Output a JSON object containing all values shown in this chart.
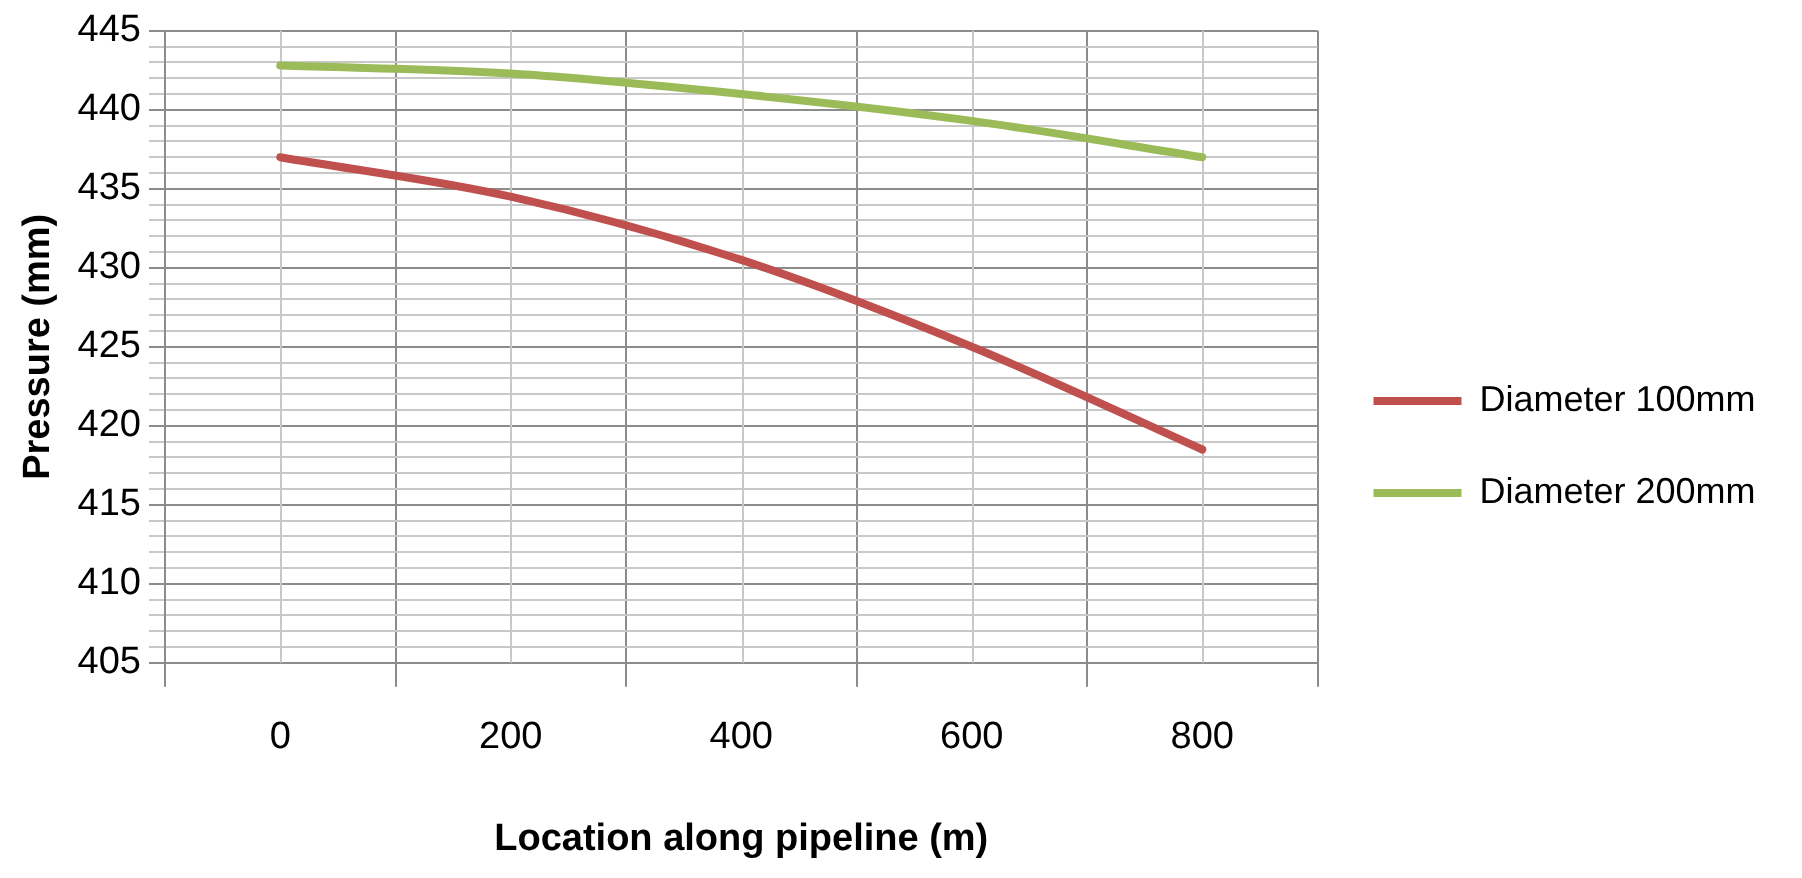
{
  "chart_data": {
    "type": "line",
    "xlabel": "Location along pipeline (m)",
    "ylabel": "Pressure (mm)",
    "categories": [
      "0",
      "200",
      "400",
      "600",
      "800"
    ],
    "series": [
      {
        "name": "Diameter 100mm",
        "color": "#c0504d",
        "values": [
          437,
          434.5,
          430.5,
          425,
          418.5
        ]
      },
      {
        "name": "Diameter 200mm",
        "color": "#9bbb59",
        "values": [
          442.8,
          442.3,
          441,
          439.3,
          437
        ]
      }
    ],
    "ylim": [
      405,
      445
    ],
    "yticks": [
      405,
      {
        "value": 406,
        "label": null
      },
      {
        "value": 407,
        "label": null
      },
      {
        "value": 408,
        "label": null
      },
      {
        "value": 409,
        "label": null
      },
      410,
      {
        "value": 411,
        "label": null
      },
      {
        "value": 412,
        "label": null
      },
      {
        "value": 413,
        "label": null
      },
      {
        "value": 414,
        "label": null
      },
      415,
      {
        "value": 416,
        "label": null
      },
      {
        "value": 417,
        "label": null
      },
      {
        "value": 418,
        "label": null
      },
      {
        "value": 419,
        "label": null
      },
      420,
      {
        "value": 421,
        "label": null
      },
      {
        "value": 422,
        "label": null
      },
      {
        "value": 423,
        "label": null
      },
      {
        "value": 424,
        "label": null
      },
      425,
      {
        "value": 426,
        "label": null
      },
      {
        "value": 427,
        "label": null
      },
      {
        "value": 428,
        "label": null
      },
      {
        "value": 429,
        "label": null
      },
      430,
      {
        "value": 431,
        "label": null
      },
      {
        "value": 432,
        "label": null
      },
      {
        "value": 433,
        "label": null
      },
      {
        "value": 434,
        "label": null
      },
      435,
      {
        "value": 436,
        "label": null
      },
      {
        "value": 437,
        "label": null
      },
      {
        "value": 438,
        "label": null
      },
      {
        "value": 439,
        "label": null
      },
      440,
      {
        "value": 441,
        "label": null
      },
      {
        "value": 442,
        "label": null
      },
      {
        "value": 443,
        "label": null
      },
      {
        "value": 444,
        "label": null
      },
      445
    ],
    "grid": true,
    "legend": "right",
    "marker": "none",
    "line_style": "solid"
  }
}
